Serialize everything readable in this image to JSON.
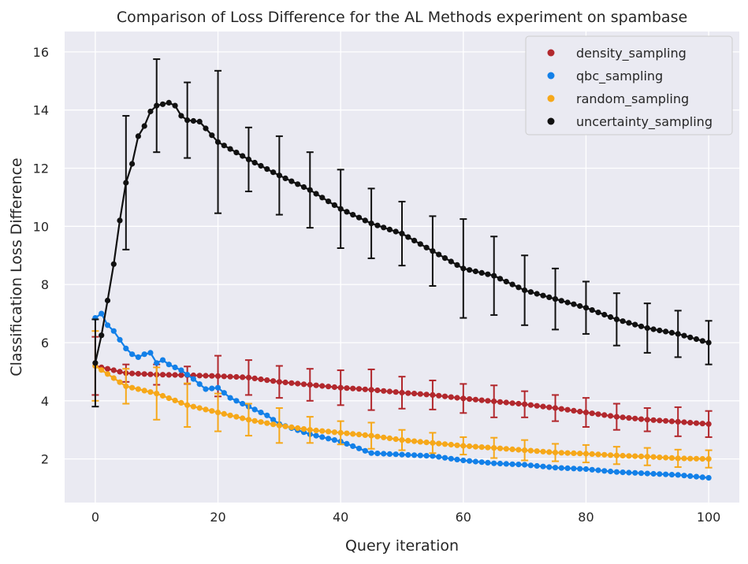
{
  "chart_data": {
    "type": "scatter",
    "title": "Comparison of Loss Difference for the AL Methods experiment on spambase",
    "xlabel": "Query iteration",
    "ylabel": "Classification Loss Difference",
    "xlim": [
      -5,
      105
    ],
    "ylim": [
      0.5,
      16.7
    ],
    "xticks": [
      0,
      20,
      40,
      60,
      80,
      100
    ],
    "yticks": [
      2,
      4,
      6,
      8,
      10,
      12,
      14,
      16
    ],
    "grid": true,
    "legend_position": "top-right",
    "error_bar_every": 5,
    "series": [
      {
        "name": "density_sampling",
        "color": "#b2282d",
        "knots_x": [
          0,
          5,
          10,
          15,
          20,
          25,
          30,
          35,
          40,
          45,
          50,
          55,
          60,
          65,
          70,
          75,
          80,
          85,
          90,
          95,
          100
        ],
        "knots_y": [
          5.2,
          4.95,
          4.9,
          4.88,
          4.85,
          4.8,
          4.65,
          4.55,
          4.45,
          4.38,
          4.28,
          4.2,
          4.08,
          3.98,
          3.88,
          3.75,
          3.6,
          3.45,
          3.35,
          3.28,
          3.2
        ],
        "err": [
          1.0,
          0.3,
          0.35,
          0.3,
          0.7,
          0.6,
          0.55,
          0.55,
          0.6,
          0.7,
          0.55,
          0.5,
          0.5,
          0.55,
          0.45,
          0.45,
          0.5,
          0.45,
          0.4,
          0.5,
          0.45
        ]
      },
      {
        "name": "qbc_sampling",
        "color": "#1380e8",
        "knots_x": [
          0,
          1,
          2,
          3,
          4,
          5,
          6,
          7,
          8,
          9,
          10,
          11,
          12,
          14,
          16,
          18,
          20,
          22,
          25,
          28,
          30,
          35,
          40,
          45,
          50,
          55,
          60,
          65,
          70,
          75,
          80,
          85,
          90,
          95,
          100
        ],
        "knots_y": [
          6.85,
          7.0,
          6.6,
          6.4,
          6.1,
          5.8,
          5.6,
          5.5,
          5.6,
          5.65,
          5.3,
          5.4,
          5.25,
          5.05,
          4.75,
          4.4,
          4.45,
          4.1,
          3.8,
          3.5,
          3.2,
          2.85,
          2.6,
          2.2,
          2.15,
          2.1,
          1.95,
          1.85,
          1.8,
          1.7,
          1.65,
          1.55,
          1.5,
          1.45,
          1.35
        ]
      },
      {
        "name": "random_sampling",
        "color": "#f6a81a",
        "knots_x": [
          0,
          5,
          10,
          15,
          20,
          25,
          30,
          35,
          40,
          45,
          50,
          55,
          60,
          65,
          70,
          75,
          80,
          85,
          90,
          95,
          100
        ],
        "knots_y": [
          5.2,
          4.5,
          4.25,
          3.85,
          3.6,
          3.35,
          3.15,
          3.0,
          2.9,
          2.8,
          2.65,
          2.55,
          2.45,
          2.38,
          2.3,
          2.22,
          2.18,
          2.12,
          2.08,
          2.02,
          2.0
        ],
        "err": [
          1.2,
          0.6,
          0.9,
          0.75,
          0.65,
          0.55,
          0.6,
          0.45,
          0.4,
          0.45,
          0.35,
          0.35,
          0.3,
          0.35,
          0.35,
          0.3,
          0.3,
          0.3,
          0.3,
          0.3,
          0.3
        ]
      },
      {
        "name": "uncertainty_sampling",
        "color": "#111111",
        "knots_x": [
          0,
          1,
          2,
          3,
          4,
          5,
          6,
          7,
          8,
          9,
          10,
          11,
          12,
          13,
          14,
          15,
          17,
          20,
          25,
          30,
          35,
          40,
          45,
          50,
          55,
          60,
          65,
          70,
          75,
          80,
          85,
          90,
          95,
          100
        ],
        "knots_y": [
          5.3,
          6.25,
          7.45,
          8.7,
          10.2,
          11.5,
          12.15,
          13.1,
          13.45,
          13.95,
          14.15,
          14.2,
          14.25,
          14.15,
          13.8,
          13.65,
          13.6,
          12.9,
          12.3,
          11.75,
          11.25,
          10.6,
          10.1,
          9.75,
          9.15,
          8.55,
          8.3,
          7.8,
          7.5,
          7.2,
          6.8,
          6.5,
          6.3,
          6.0
        ],
        "err": [
          1.5,
          2.3,
          1.6,
          1.3,
          2.45,
          1.1,
          1.35,
          1.3,
          1.35,
          1.2,
          1.1,
          1.2,
          1.7,
          1.35,
          1.2,
          1.05,
          0.9,
          0.9,
          0.85,
          0.8,
          0.75
        ]
      }
    ]
  }
}
